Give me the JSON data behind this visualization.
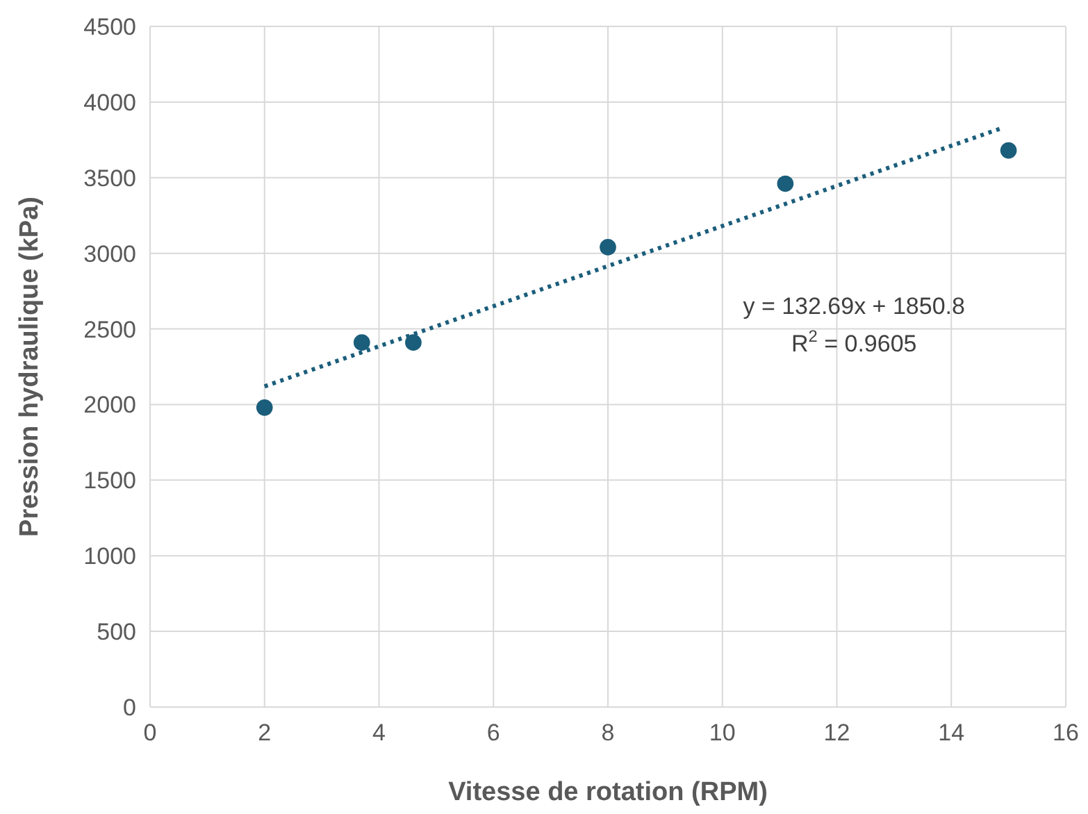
{
  "chart_data": {
    "type": "scatter",
    "xlabel": "Vitesse de rotation (RPM)",
    "ylabel": "Pression hydraulique (kPa)",
    "xlim": [
      0,
      16
    ],
    "xticks": [
      0,
      2,
      4,
      6,
      8,
      10,
      12,
      14,
      16
    ],
    "ylim": [
      0,
      4500
    ],
    "yticks": [
      0,
      500,
      1000,
      1500,
      2000,
      2500,
      3000,
      3500,
      4000,
      4500
    ],
    "grid": true,
    "marker": "circle",
    "series": [
      {
        "color": "#1b5e7b",
        "x": [
          2,
          3.7,
          4.6,
          8,
          11.1,
          15
        ],
        "values": [
          1980,
          2410,
          2410,
          3040,
          3460,
          3680
        ]
      },
      {
        "type": "line",
        "color": "#1b5e7b",
        "line_style": "dotted",
        "marker": "none",
        "x": [
          2,
          14.9
        ],
        "values": [
          2120,
          3830
        ]
      }
    ],
    "annotations": [
      "y = 132.69x + 1850.8",
      "R$^{2}$ = 0.9605"
    ]
  }
}
